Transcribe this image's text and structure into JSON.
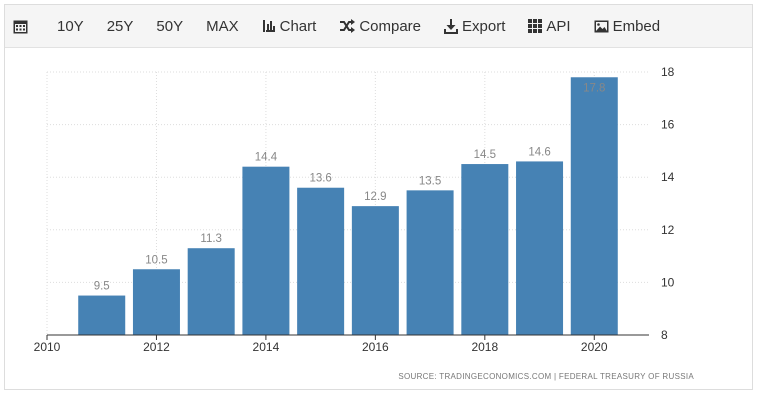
{
  "toolbar": {
    "items": [
      {
        "name": "calendar-icon",
        "label": ""
      },
      {
        "name": "range-10y",
        "label": "10Y"
      },
      {
        "name": "range-25y",
        "label": "25Y"
      },
      {
        "name": "range-50y",
        "label": "50Y"
      },
      {
        "name": "range-max",
        "label": "MAX"
      },
      {
        "name": "chart-button",
        "label": "Chart"
      },
      {
        "name": "compare-button",
        "label": "Compare"
      },
      {
        "name": "export-button",
        "label": "Export"
      },
      {
        "name": "api-button",
        "label": "API"
      },
      {
        "name": "embed-button",
        "label": "Embed"
      }
    ]
  },
  "source": "SOURCE: TRADINGECONOMICS.COM | FEDERAL TREASURY OF RUSSIA",
  "chart_data": {
    "type": "bar",
    "title": "",
    "xlabel": "",
    "ylabel": "",
    "x": [
      2011,
      2012,
      2013,
      2014,
      2015,
      2016,
      2017,
      2018,
      2019,
      2020
    ],
    "values": [
      9.5,
      10.5,
      11.3,
      14.4,
      13.6,
      12.9,
      13.5,
      14.5,
      14.6,
      17.8
    ],
    "data_labels": [
      "9.5",
      "10.5",
      "11.3",
      "14.4",
      "13.6",
      "12.9",
      "13.5",
      "14.5",
      "14.6",
      "17.8"
    ],
    "xlim": [
      2010,
      2021
    ],
    "ylim": [
      8,
      18
    ],
    "x_ticks": [
      "2010",
      "2012",
      "2014",
      "2016",
      "2018",
      "2020"
    ],
    "y_ticks": [
      "8",
      "10",
      "12",
      "14",
      "16",
      "18"
    ],
    "y_axis_side": "right",
    "grid": true,
    "colors": {
      "bar": "#4682b4",
      "label": "#888888",
      "grid": "#dddddd",
      "axis_text": "#333333"
    }
  }
}
